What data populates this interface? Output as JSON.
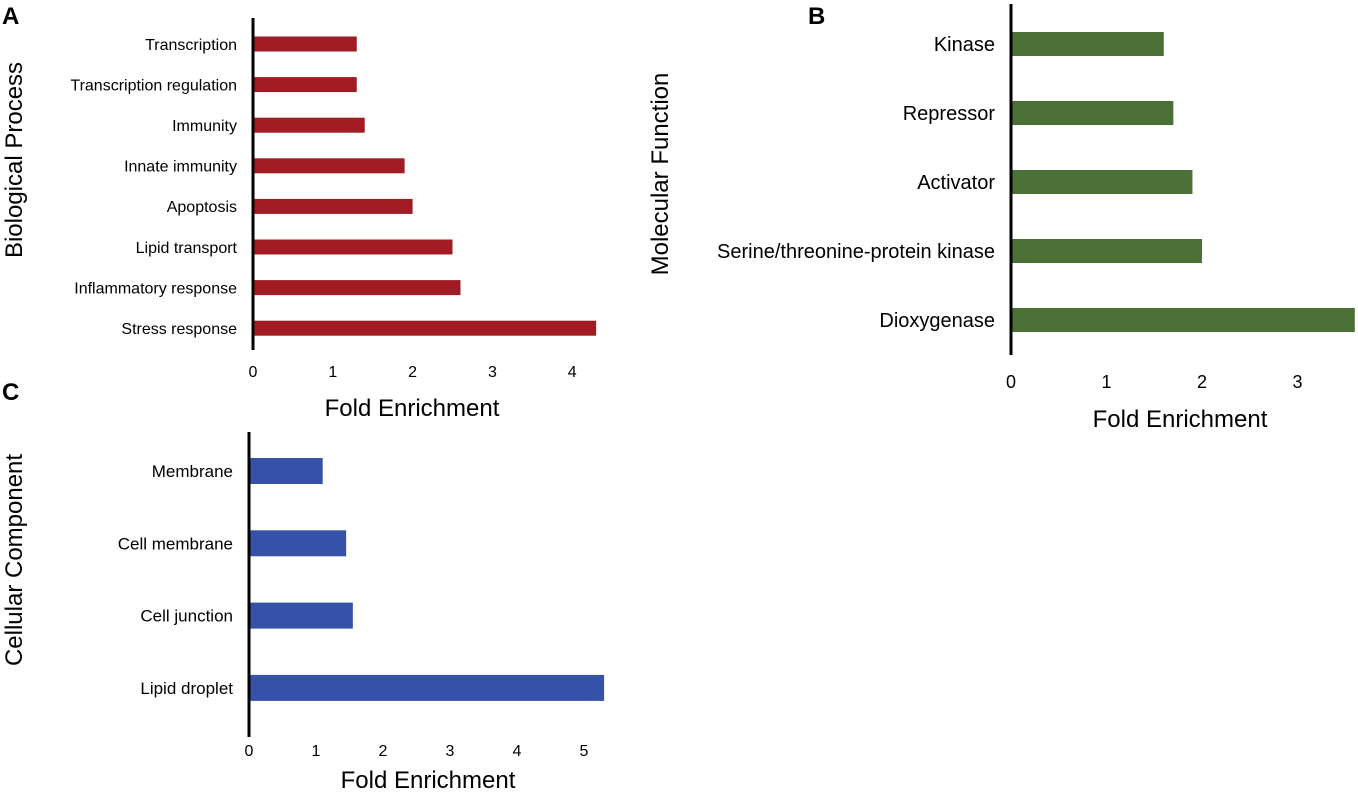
{
  "chart_data": [
    {
      "panel": "A",
      "type": "bar",
      "orientation": "horizontal",
      "ylabel": "Biological Process",
      "xlabel": "Fold Enrichment",
      "categories": [
        "Transcription",
        "Transcription regulation",
        "Immunity",
        "Innate immunity",
        "Apoptosis",
        "Lipid transport",
        "Inflammatory response",
        "Stress response"
      ],
      "values": [
        1.3,
        1.3,
        1.4,
        1.9,
        2.0,
        2.5,
        2.6,
        4.3
      ],
      "xticks": [
        0,
        1,
        2,
        3,
        4
      ],
      "xlim": [
        0,
        4.3
      ],
      "color": "#a01c22"
    },
    {
      "panel": "B",
      "type": "bar",
      "orientation": "horizontal",
      "ylabel": "Molecular Function",
      "xlabel": "Fold Enrichment",
      "categories": [
        "Kinase",
        "Repressor",
        "Activator",
        "Serine/threonine-protein kinase",
        "Dioxygenase"
      ],
      "values": [
        1.6,
        1.7,
        1.9,
        2.0,
        3.6
      ],
      "xticks": [
        0,
        1,
        2,
        3
      ],
      "xlim": [
        0,
        3.6
      ],
      "color": "#4a7035"
    },
    {
      "panel": "C",
      "type": "bar",
      "orientation": "horizontal",
      "ylabel": "Cellular Component",
      "xlabel": "Fold Enrichment",
      "categories": [
        "Membrane",
        "Cell membrane",
        "Cell junction",
        "Lipid droplet"
      ],
      "values": [
        1.1,
        1.45,
        1.55,
        5.3
      ],
      "xticks": [
        0,
        1,
        2,
        3,
        4,
        5
      ],
      "xlim": [
        0,
        5.3
      ],
      "color": "#3651a8"
    }
  ]
}
